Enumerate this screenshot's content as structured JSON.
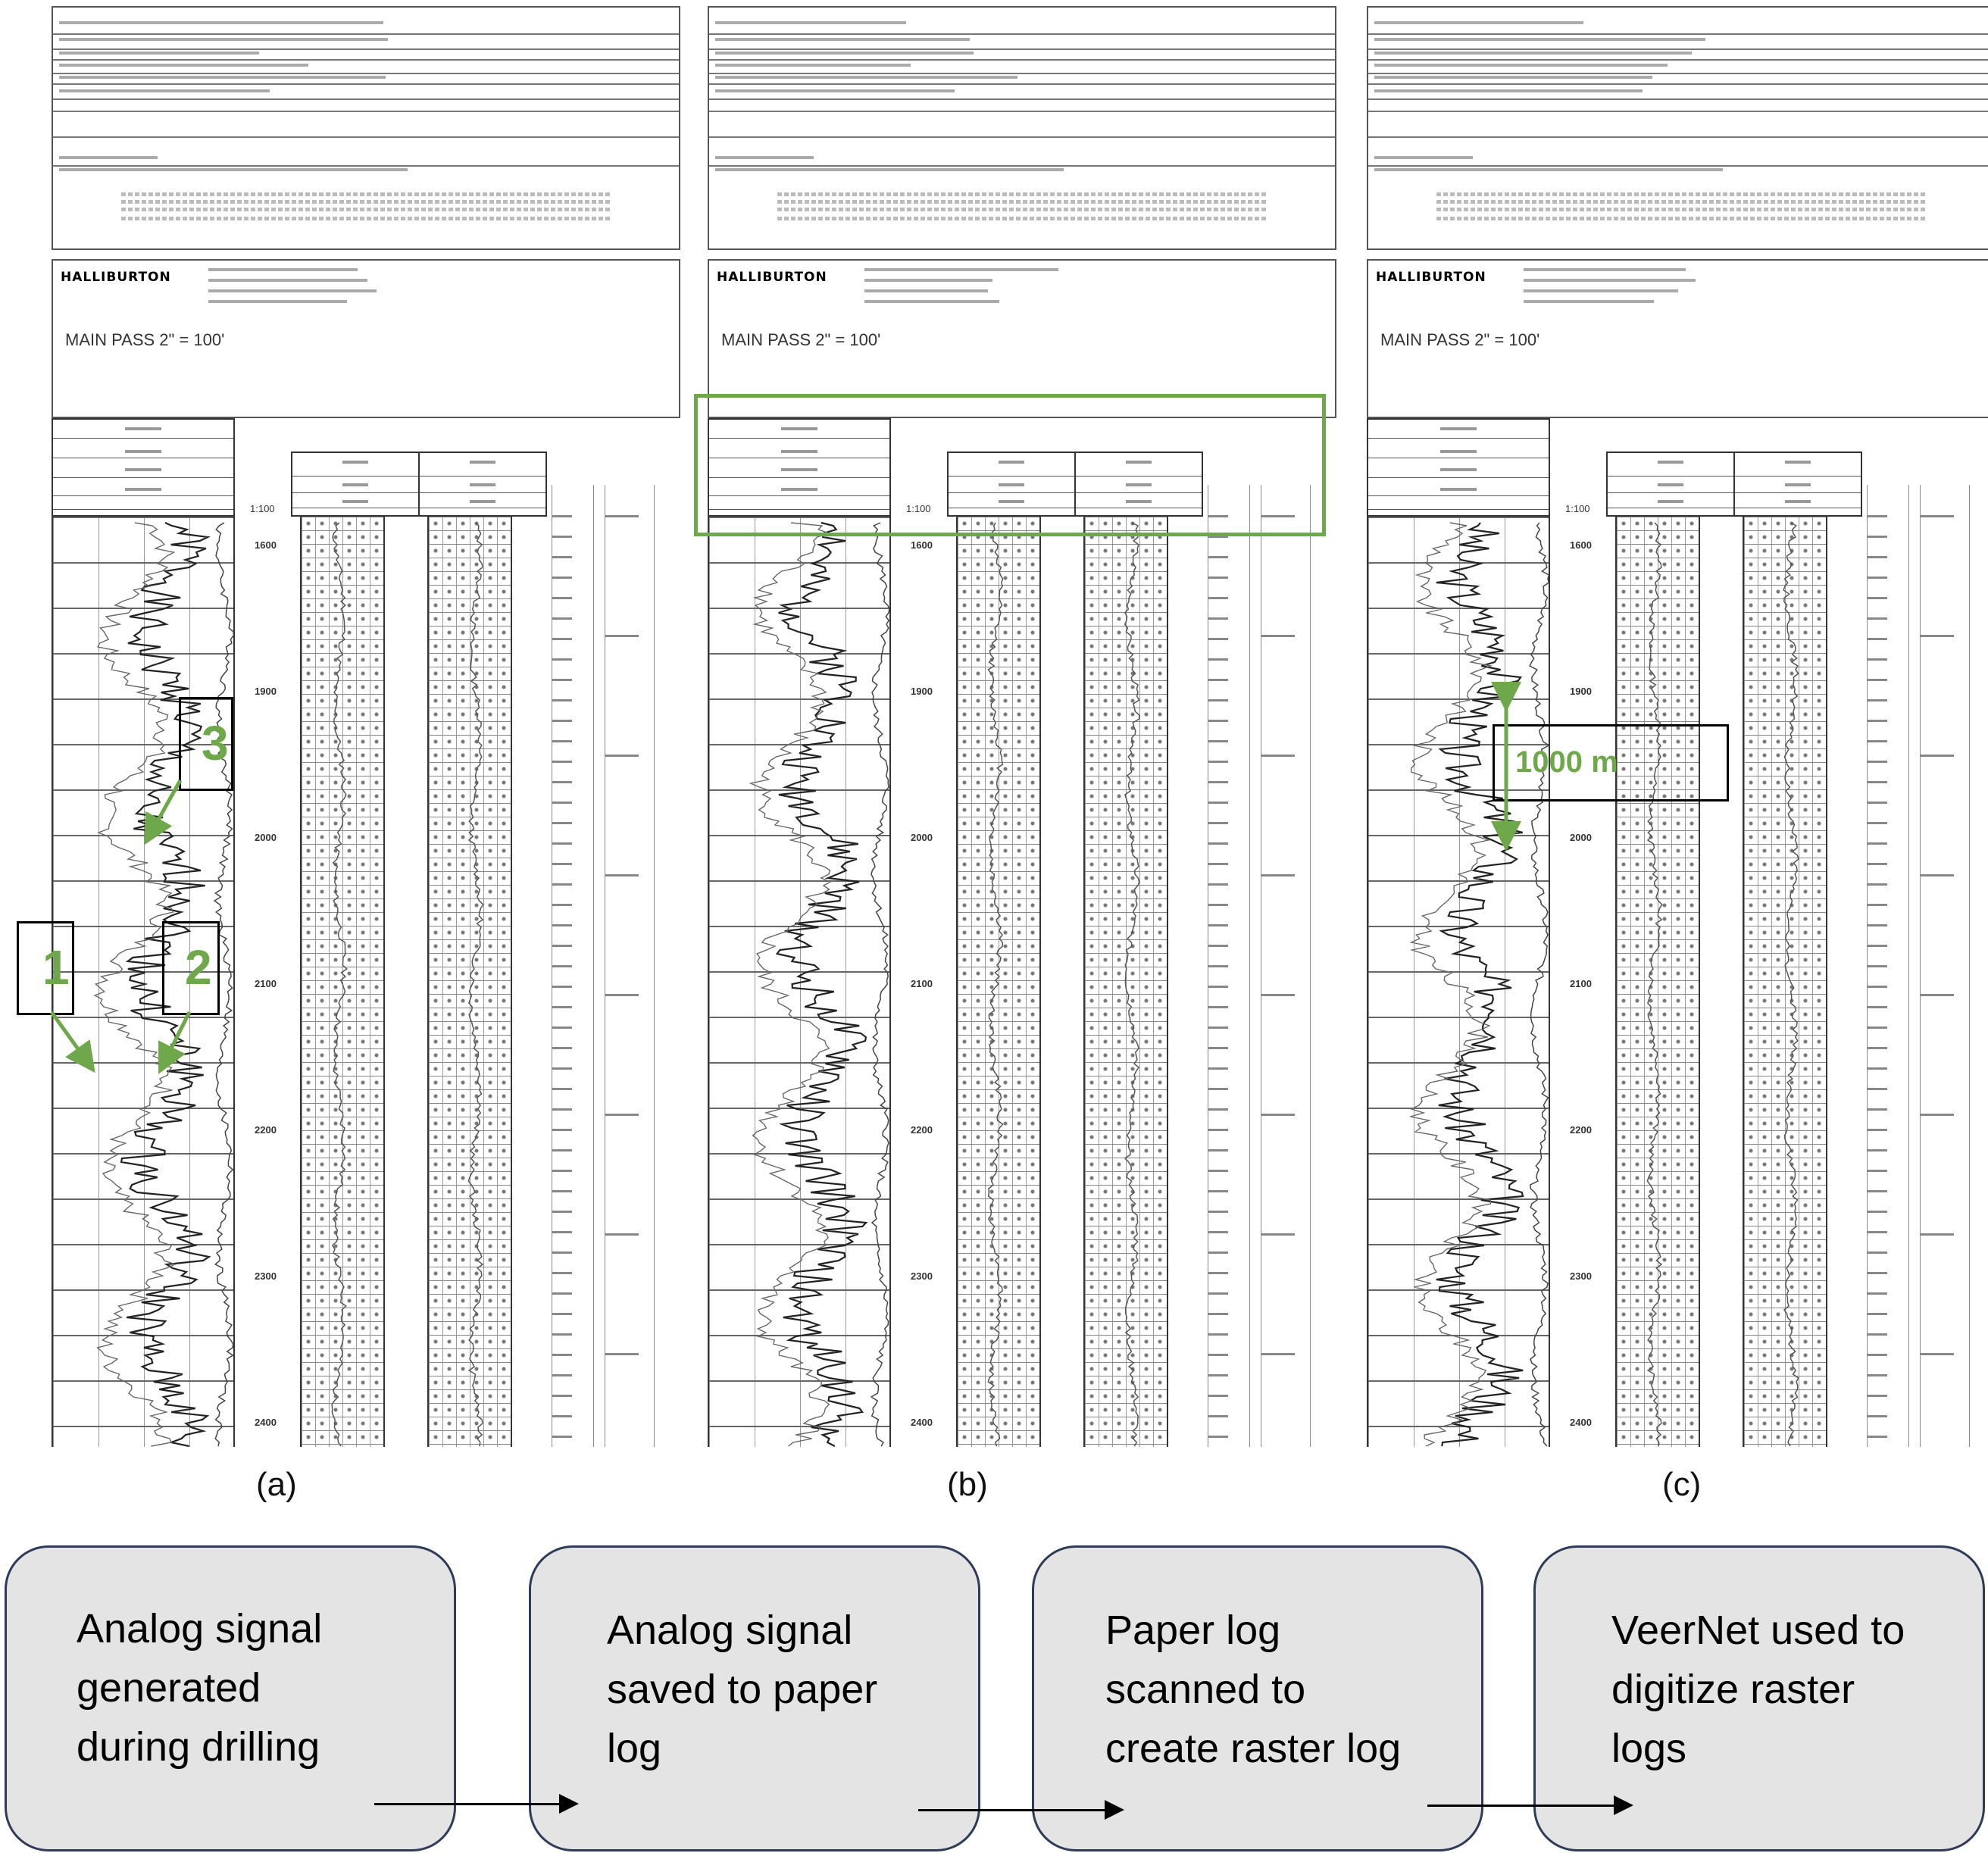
{
  "panels": [
    {
      "label": "(a)",
      "brand": "HALLIBURTON",
      "main_pass": "MAIN PASS  2\" = 100'"
    },
    {
      "label": "(b)",
      "brand": "HALLIBURTON",
      "main_pass": "MAIN PASS  2\" = 100'"
    },
    {
      "label": "(c)",
      "brand": "HALLIBURTON",
      "main_pass": "MAIN PASS  2\" = 100'"
    }
  ],
  "depth_scale": "1:100",
  "depth_ticks": [
    "1600",
    "1900",
    "2000",
    "2100",
    "2200",
    "2300",
    "2400"
  ],
  "annotations": {
    "marker_1": "1",
    "marker_2": "2",
    "marker_3": "3",
    "distance": "1000 m"
  },
  "flow": [
    {
      "text": "Analog signal\ngenerated\nduring drilling"
    },
    {
      "text": "Analog signal\nsaved to paper\nlog"
    },
    {
      "text": "Paper log\nscanned to\ncreate raster log"
    },
    {
      "text": "VeerNet used to\ndigitize raster\nlogs"
    }
  ],
  "colors": {
    "highlight": "#6fa84a",
    "box_border": "#2f3b57",
    "box_fill": "#e4e4e4"
  }
}
